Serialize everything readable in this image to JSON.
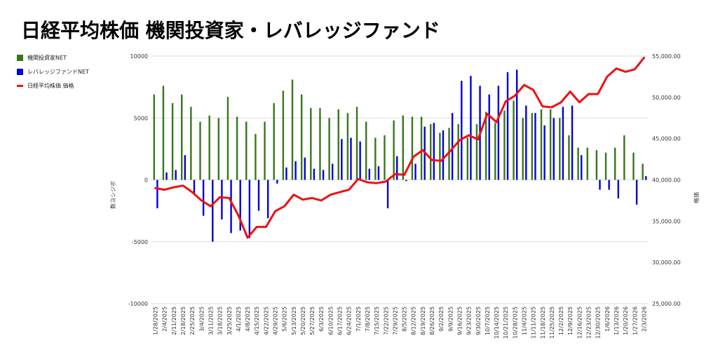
{
  "chart_data": {
    "type": "bar+line",
    "title": "日経平均株価 機関投資家・レバレッジファンド",
    "ylabel_left": "数ヨシジボ",
    "ylabel_right": "格価",
    "ylim_left": [
      -10000,
      10000
    ],
    "ylim_right": [
      25000,
      55000
    ],
    "yticks_left": [
      "10000",
      "5000",
      "0",
      "-5000",
      "-10000"
    ],
    "yticks_right": [
      "55,000.00",
      "50,000.00",
      "45,000.00",
      "40,000.00",
      "35,000.00",
      "30,000.00",
      "25,000.00"
    ],
    "legend_placement": "top-left",
    "categories": [
      "1/28/2025",
      "2/4/2025",
      "2/11/2025",
      "2/18/2025",
      "2/25/2025",
      "3/4/2025",
      "3/11/2025",
      "3/18/2025",
      "3/25/2025",
      "4/1/2025",
      "4/8/2025",
      "4/15/2025",
      "4/22/2025",
      "4/29/2025",
      "5/6/2025",
      "5/13/2025",
      "5/20/2025",
      "5/27/2025",
      "6/3/2025",
      "6/10/2025",
      "6/17/2025",
      "6/24/2025",
      "7/1/2025",
      "7/8/2025",
      "7/15/2025",
      "7/22/2025",
      "7/29/2025",
      "8/5/2025",
      "8/12/2025",
      "8/19/2025",
      "8/26/2025",
      "9/2/2025",
      "9/9/2025",
      "9/16/2025",
      "9/23/2025",
      "9/30/2025",
      "10/7/2025",
      "10/14/2025",
      "10/21/2025",
      "10/28/2025",
      "11/4/2025",
      "11/11/2025",
      "11/18/2025",
      "11/25/2025",
      "12/2/2025",
      "12/9/2025",
      "12/16/2025",
      "12/23/2025",
      "12/30/2025",
      "1/6/2026",
      "1/13/2026",
      "1/20/2026",
      "1/27/2026",
      "2/3/2026"
    ],
    "series": [
      {
        "name": "機関投資家NET",
        "kind": "bar",
        "color": "#38761d",
        "values": [
          6900,
          7600,
          6200,
          6900,
          5900,
          4700,
          5200,
          5000,
          6700,
          5100,
          4700,
          3700,
          4700,
          6200,
          7200,
          8100,
          6900,
          5800,
          5800,
          5000,
          5700,
          5400,
          5900,
          4700,
          3400,
          3600,
          4800,
          5200,
          5100,
          5100,
          4500,
          3800,
          4200,
          4500,
          3400,
          4500,
          5500,
          4600,
          5600,
          6400,
          5000,
          5400,
          5700,
          5700,
          5000,
          3600,
          2600,
          2600,
          2400,
          2200,
          2600,
          3600,
          2200,
          1300
        ]
      },
      {
        "name": "レバレッジファンドNET",
        "kind": "bar",
        "color": "#0000dd",
        "values": [
          -2300,
          600,
          800,
          2000,
          -1100,
          -2900,
          -5000,
          -3200,
          -4300,
          -4100,
          -4700,
          -2500,
          -3100,
          -300,
          1000,
          1500,
          1800,
          900,
          800,
          1300,
          3300,
          3400,
          3100,
          900,
          1100,
          -2300,
          1900,
          -100,
          1300,
          4300,
          4600,
          4000,
          5400,
          8000,
          8400,
          7600,
          6900,
          7600,
          8700,
          8900,
          6000,
          5400,
          4400,
          5000,
          5900,
          6000,
          2000,
          0,
          -800,
          -800,
          -1500,
          0,
          -2000,
          300
        ]
      },
      {
        "name": "日経平均株価 価格",
        "kind": "line",
        "color": "#ee1111",
        "axis": "right",
        "values": [
          39000,
          38800,
          39100,
          39300,
          38500,
          37500,
          36800,
          37900,
          37800,
          35700,
          33000,
          34300,
          34300,
          36200,
          36800,
          38200,
          37600,
          37800,
          37500,
          38200,
          38500,
          38800,
          40100,
          39700,
          39600,
          39800,
          40700,
          40600,
          42800,
          43600,
          42400,
          42300,
          43500,
          44800,
          45400,
          44900,
          48000,
          47000,
          49500,
          50200,
          51500,
          50900,
          48900,
          48800,
          49400,
          50700,
          49400,
          50400,
          50400,
          52500,
          53500,
          53100,
          53400,
          54800
        ]
      }
    ]
  }
}
